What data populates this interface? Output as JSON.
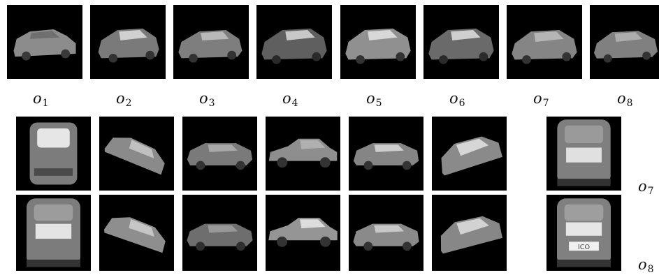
{
  "top_row_labels": [
    {
      "base": "o",
      "sub": "1"
    },
    {
      "base": "o",
      "sub": "2"
    },
    {
      "base": "o",
      "sub": "3"
    },
    {
      "base": "o",
      "sub": "4"
    },
    {
      "base": "o",
      "sub": "5"
    },
    {
      "base": "o",
      "sub": "6"
    },
    {
      "base": "o",
      "sub": "7"
    },
    {
      "base": "o",
      "sub": "8"
    }
  ],
  "right_labels": [
    {
      "base": "o",
      "sub": "7"
    },
    {
      "base": "o",
      "sub": "8"
    }
  ],
  "plate_text": "ICO",
  "colors": {
    "background": "#ffffff",
    "tile": "#000000",
    "car_body": "#8a8a8a"
  }
}
